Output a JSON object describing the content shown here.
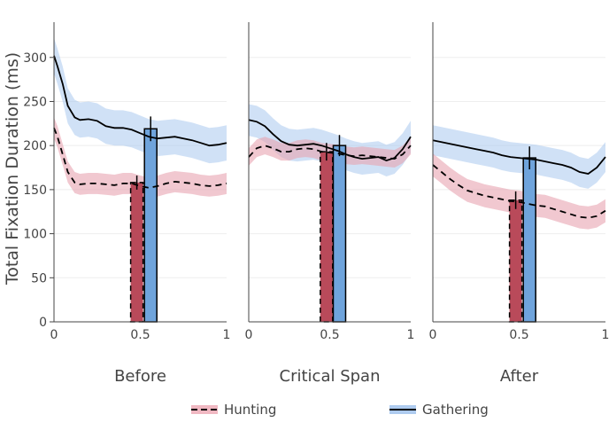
{
  "chart_data": {
    "type": "line",
    "ylabel": "Total Fixation Duration (ms)",
    "ylim": [
      0,
      340
    ],
    "yticks": [
      "0",
      "50",
      "100",
      "150",
      "200",
      "250",
      "300"
    ],
    "xlim": [
      0,
      1
    ],
    "xticks": [
      "0",
      "0.5",
      "1"
    ],
    "legend": {
      "position": "bottom",
      "items": [
        {
          "name": "Hunting",
          "line_color": "#000000",
          "dash": true,
          "band_color": "#f0b8c2"
        },
        {
          "name": "Gathering",
          "line_color": "#000000",
          "dash": false,
          "band_color": "#aecbef"
        }
      ]
    },
    "colors": {
      "hunting_bar": "#b94a5a",
      "gathering_bar": "#6fa4dc",
      "hunting_band": "#e8a4b1",
      "gathering_band": "#a9c9ee"
    },
    "panels": [
      {
        "title": "Before",
        "x": [
          0,
          0.02,
          0.05,
          0.08,
          0.12,
          0.15,
          0.2,
          0.25,
          0.3,
          0.35,
          0.4,
          0.45,
          0.5,
          0.55,
          0.6,
          0.65,
          0.7,
          0.75,
          0.8,
          0.85,
          0.9,
          0.95,
          1
        ],
        "series": [
          {
            "name": "Hunting",
            "y": [
              220,
              210,
              190,
              170,
              158,
              156,
              157,
              157,
              156,
              155,
              157,
              157,
              154,
              152,
              154,
              157,
              159,
              158,
              157,
              155,
              154,
              155,
              157
            ],
            "ci": 12
          },
          {
            "name": "Gathering",
            "y": [
              302,
              290,
              270,
              245,
              232,
              229,
              230,
              228,
              222,
              220,
              220,
              218,
              214,
              210,
              208,
              209,
              210,
              208,
              206,
              203,
              200,
              201,
              203
            ],
            "ci": 20
          }
        ],
        "bars": [
          {
            "name": "Hunting",
            "value": 158,
            "err": 8
          },
          {
            "name": "Gathering",
            "value": 219,
            "err": 14
          }
        ]
      },
      {
        "title": "Critical Span",
        "x": [
          0,
          0.05,
          0.1,
          0.15,
          0.2,
          0.25,
          0.3,
          0.35,
          0.4,
          0.45,
          0.5,
          0.55,
          0.6,
          0.65,
          0.7,
          0.75,
          0.8,
          0.85,
          0.9,
          0.95,
          1
        ],
        "series": [
          {
            "name": "Hunting",
            "y": [
              187,
              197,
              200,
              197,
              193,
              193,
              196,
              197,
              196,
              193,
              192,
              191,
              189,
              188,
              189,
              188,
              187,
              186,
              185,
              190,
              200
            ],
            "ci": 10
          },
          {
            "name": "Gathering",
            "y": [
              229,
              227,
              222,
              213,
              205,
              201,
              200,
              201,
              202,
              200,
              197,
              194,
              190,
              187,
              185,
              186,
              187,
              183,
              186,
              196,
              210
            ],
            "ci": 18
          }
        ],
        "bars": [
          {
            "name": "Hunting",
            "value": 193,
            "err": 10
          },
          {
            "name": "Gathering",
            "value": 200,
            "err": 12
          }
        ]
      },
      {
        "title": "After",
        "x": [
          0,
          0.05,
          0.1,
          0.15,
          0.2,
          0.25,
          0.3,
          0.35,
          0.4,
          0.45,
          0.5,
          0.55,
          0.6,
          0.65,
          0.7,
          0.75,
          0.8,
          0.85,
          0.9,
          0.95,
          1
        ],
        "series": [
          {
            "name": "Hunting",
            "y": [
              178,
              170,
              162,
              155,
              149,
              146,
              143,
              141,
              139,
              137,
              136,
              134,
              132,
              131,
              128,
              125,
              122,
              119,
              118,
              120,
              126
            ],
            "ci": 13
          },
          {
            "name": "Gathering",
            "y": [
              206,
              204,
              202,
              200,
              198,
              196,
              194,
              192,
              189,
              187,
              186,
              185,
              184,
              182,
              180,
              178,
              175,
              170,
              168,
              175,
              187
            ],
            "ci": 17
          }
        ],
        "bars": [
          {
            "name": "Hunting",
            "value": 138,
            "err": 10
          },
          {
            "name": "Gathering",
            "value": 186,
            "err": 13
          }
        ]
      }
    ]
  }
}
